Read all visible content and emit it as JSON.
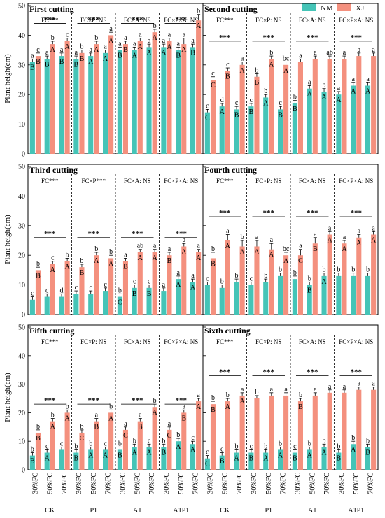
{
  "chart_data": {
    "type": "bar",
    "ylabel": "Plant heigh(cm)",
    "legend": [
      {
        "name": "NM",
        "color": "#45c4b7"
      },
      {
        "name": "XJ",
        "color": "#f4907e"
      }
    ],
    "legend_position": "top-right",
    "groups": [
      "CK",
      "P1",
      "A1",
      "A1P1"
    ],
    "fc_levels": [
      "30%FC",
      "50%FC",
      "70%FC"
    ],
    "panels": [
      {
        "title": "First cutting",
        "ylim": [
          0,
          50
        ],
        "yticks": [
          0,
          10,
          20,
          30,
          40,
          50
        ],
        "effects": [
          "FC***",
          "FC×P: NS",
          "FC×A: NS",
          "FC×P×A: NS"
        ],
        "stars_y": 44,
        "NM": [
          31,
          32,
          33,
          32,
          33,
          34,
          35,
          35,
          36,
          36,
          35,
          36
        ],
        "XJ": [
          33,
          37,
          38,
          34,
          37,
          40,
          37,
          38,
          41,
          38,
          37,
          45
        ],
        "NM_err": [
          1,
          1,
          1,
          1,
          1,
          1,
          1,
          1,
          1,
          1,
          1,
          1
        ],
        "XJ_err": [
          1,
          1,
          1,
          1,
          1,
          1,
          1,
          1,
          1,
          1,
          2,
          2
        ],
        "NM_letters": [
          "a",
          "a",
          "a",
          "a",
          "a",
          "a",
          "a",
          "a",
          "a",
          "a",
          "a",
          "a"
        ],
        "NM_caps": [
          "B",
          "B",
          "B",
          "B",
          "A",
          "A",
          "B",
          "A",
          "A",
          "A",
          "B",
          "B"
        ],
        "XJ_letters": [
          "c",
          "b",
          "c",
          "b",
          "b",
          "a",
          "a",
          "a",
          "b",
          "a",
          "a",
          "b"
        ],
        "XJ_caps": [
          "B",
          "A",
          "A",
          "B",
          "A",
          "A",
          "B",
          "A",
          "A",
          "A",
          "A",
          "A"
        ]
      },
      {
        "title": "Second cutting",
        "ylim": [
          0,
          50
        ],
        "yticks": [
          0,
          10,
          20,
          30,
          40,
          50
        ],
        "effects": [
          "FC***",
          "FC×P: NS",
          "FC×A: NS",
          "FC×P×A: NS"
        ],
        "stars_y": 38,
        "NM": [
          14,
          16,
          15,
          16,
          19,
          15,
          17,
          22,
          21,
          20,
          23,
          23
        ],
        "XJ": [
          25,
          28,
          30,
          26,
          32,
          30,
          31,
          32,
          32,
          32,
          33,
          33
        ],
        "NM_err": [
          1,
          1,
          1,
          1,
          1,
          1,
          1,
          1,
          1,
          1,
          1,
          1
        ],
        "XJ_err": [
          1,
          1,
          1,
          1,
          1,
          1,
          1,
          1,
          1,
          1,
          1,
          1
        ],
        "NM_letters": [
          "c",
          "d",
          "c",
          "c",
          "b",
          "c",
          "b",
          "a",
          "b",
          "a",
          "a",
          "a"
        ],
        "NM_caps": [
          "C",
          "A",
          "B",
          "B",
          "A",
          "B",
          "B",
          "A",
          "A",
          "A",
          "A",
          "A"
        ],
        "XJ_letters": [
          "c",
          "c",
          "a",
          "b",
          "b",
          "bc",
          "a",
          "a",
          "ab",
          "a",
          "a",
          "a"
        ],
        "XJ_caps": [
          "C",
          "B",
          "A",
          "B",
          "A",
          "A",
          "",
          "",
          "",
          "",
          "",
          ""
        ]
      },
      {
        "title": "Third cutting",
        "ylim": [
          0,
          50
        ],
        "yticks": [
          0,
          10,
          20,
          30,
          40,
          50
        ],
        "effects": [
          "FC***",
          "FC×P***",
          "FC×A: NS",
          "FC×P×A: NS"
        ],
        "stars_y": 26,
        "NM": [
          5,
          6,
          6,
          7,
          7,
          8,
          6,
          9,
          9,
          8,
          12,
          11
        ],
        "XJ": [
          15,
          17,
          18,
          16,
          20,
          19,
          18,
          21,
          21,
          20,
          23,
          21
        ],
        "NM_err": [
          1,
          1,
          1,
          1,
          1,
          1,
          1,
          1,
          1,
          1,
          1,
          1
        ],
        "XJ_err": [
          1,
          1,
          1,
          1,
          1,
          1,
          1,
          1,
          1,
          1,
          1,
          1
        ],
        "NM_letters": [
          "c",
          "c",
          "d",
          "c",
          "c",
          "c",
          "b",
          "c",
          "c",
          "a",
          "a",
          "a"
        ],
        "NM_caps": [
          "",
          "",
          "",
          "",
          "",
          "",
          "C",
          "B",
          "B",
          "",
          "A",
          "A"
        ],
        "XJ_letters": [
          "b",
          "c",
          "b",
          "b",
          "b",
          "b",
          "a",
          "ab",
          "a",
          "a",
          "a",
          "a"
        ],
        "XJ_caps": [
          "B",
          "A",
          "A",
          "B",
          "A",
          "A",
          "B",
          "A",
          "A",
          "B",
          "A",
          "A"
        ]
      },
      {
        "title": "Fourth cutting",
        "ylim": [
          0,
          50
        ],
        "yticks": [
          0,
          10,
          20,
          30,
          40,
          50
        ],
        "effects": [
          "FC***",
          "FC×P: NS",
          "FC×A: NS",
          "FC×P×A: NS"
        ],
        "stars_y": 33,
        "NM": [
          10,
          9,
          11,
          10,
          11,
          13,
          12,
          10,
          13,
          13,
          13,
          13
        ],
        "XJ": [
          19,
          25,
          23,
          23,
          22,
          20,
          20,
          24,
          27,
          24,
          26,
          27
        ],
        "NM_err": [
          1,
          1,
          1,
          1,
          1,
          1,
          1,
          1,
          1,
          1,
          1,
          1
        ],
        "XJ_err": [
          2,
          2,
          2,
          2,
          2,
          1,
          2,
          2,
          1,
          1,
          1,
          1
        ],
        "NM_letters": [
          "c",
          "b",
          "b",
          "c",
          "b",
          "b",
          "b",
          "b",
          "b",
          "b",
          "b",
          "b"
        ],
        "NM_caps": [
          "",
          "",
          "",
          "",
          "",
          "",
          "",
          "B",
          "A",
          "",
          "",
          ""
        ],
        "XJ_letters": [
          "b",
          "a",
          "b",
          "a",
          "a",
          "bc",
          "a",
          "a",
          "a",
          "a",
          "a",
          "a"
        ],
        "XJ_caps": [
          "B",
          "A",
          "A",
          "A",
          "A",
          "A",
          "C",
          "B",
          "A",
          "A",
          "A",
          "A"
        ]
      },
      {
        "title": "Fifth cutting",
        "ylim": [
          0,
          50
        ],
        "yticks": [
          0,
          10,
          20,
          30,
          40,
          50
        ],
        "effects": [
          "FC***",
          "FC×P: NS",
          "FC×A: NS",
          "FC×P×A: NS"
        ],
        "stars_y": 23,
        "NM": [
          5,
          6,
          7,
          6,
          7,
          7,
          7,
          8,
          8,
          8,
          10,
          9
        ],
        "XJ": [
          13,
          17,
          20,
          13,
          17,
          20,
          14,
          17,
          22,
          14,
          20,
          24
        ],
        "NM_err": [
          1,
          1,
          1,
          1,
          1,
          1,
          1,
          1,
          1,
          1,
          1,
          1
        ],
        "XJ_err": [
          1,
          1,
          1,
          1,
          1,
          1,
          1,
          1,
          1,
          1,
          1,
          1
        ],
        "NM_letters": [
          "b",
          "c",
          "c",
          "b",
          "b",
          "c",
          "b",
          "b",
          "c",
          "b",
          "b",
          "c"
        ],
        "NM_caps": [
          "B",
          "A",
          "",
          "B",
          "A",
          "A",
          "B",
          "A",
          "A",
          "B",
          "A",
          "A"
        ],
        "XJ_letters": [
          "b",
          "b",
          "b",
          "b",
          "a",
          "b",
          "a",
          "a",
          "b",
          "a",
          "a",
          "a"
        ],
        "XJ_caps": [
          "B",
          "A",
          "A",
          "C",
          "B",
          "A",
          "C",
          "B",
          "A",
          "C",
          "B",
          "A"
        ]
      },
      {
        "title": "Sixth cutting",
        "ylim": [
          0,
          50
        ],
        "yticks": [
          0,
          10,
          20,
          30,
          40,
          50
        ],
        "effects": [
          "FC***",
          "FC×P: NS",
          "FC×A: NS",
          "FC×P×A: NS"
        ],
        "stars_y": 33,
        "NM": [
          4,
          5,
          6,
          6,
          6,
          7,
          6,
          7,
          8,
          6,
          9,
          8
        ],
        "XJ": [
          23,
          24,
          26,
          25,
          26,
          26,
          24,
          26,
          27,
          27,
          28,
          28
        ],
        "NM_err": [
          1,
          1,
          1,
          1,
          1,
          1,
          1,
          1,
          1,
          1,
          1,
          1
        ],
        "XJ_err": [
          1,
          1,
          1,
          1,
          1,
          1,
          1,
          1,
          1,
          1,
          1,
          1
        ],
        "NM_letters": [
          "c",
          "c",
          "b",
          "c",
          "b",
          "b",
          "c",
          "b",
          "b",
          "b",
          "b",
          "b"
        ],
        "NM_caps": [
          "C",
          "B",
          "A",
          "B",
          "A",
          "A",
          "B",
          "A",
          "A",
          "B",
          "A",
          "B"
        ],
        "XJ_letters": [
          "b",
          "b",
          "a",
          "b",
          "a",
          "a",
          "b",
          "a",
          "a",
          "a",
          "a",
          "a"
        ],
        "XJ_caps": [
          "B",
          "A",
          "A",
          "",
          "",
          "",
          "B",
          "",
          "",
          "",
          "",
          ""
        ]
      }
    ]
  }
}
